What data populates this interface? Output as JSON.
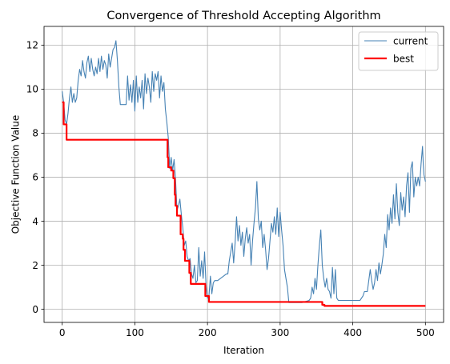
{
  "chart_data": {
    "type": "line",
    "title": "Convergence of Threshold Accepting Algorithm",
    "xlabel": "Iteration",
    "ylabel": "Objective Function Value",
    "xlim": [
      -25,
      525
    ],
    "ylim": [
      -0.6,
      12.85
    ],
    "xticks": [
      0,
      100,
      200,
      300,
      400,
      500
    ],
    "yticks": [
      0,
      2,
      4,
      6,
      8,
      10,
      12
    ],
    "grid": true,
    "legend_position": "top-right",
    "series": [
      {
        "name": "current",
        "color": "#4682b4",
        "points": [
          [
            0,
            9.9
          ],
          [
            2,
            9.4
          ],
          [
            4,
            8.6
          ],
          [
            6,
            8.4
          ],
          [
            8,
            8.9
          ],
          [
            10,
            9.6
          ],
          [
            12,
            10.1
          ],
          [
            14,
            9.4
          ],
          [
            16,
            9.8
          ],
          [
            18,
            9.4
          ],
          [
            20,
            9.6
          ],
          [
            22,
            10.4
          ],
          [
            24,
            10.9
          ],
          [
            26,
            10.6
          ],
          [
            28,
            11.3
          ],
          [
            30,
            10.8
          ],
          [
            32,
            10.5
          ],
          [
            34,
            11.2
          ],
          [
            36,
            11.5
          ],
          [
            38,
            10.8
          ],
          [
            40,
            11.4
          ],
          [
            42,
            10.9
          ],
          [
            44,
            10.6
          ],
          [
            46,
            11.0
          ],
          [
            48,
            10.7
          ],
          [
            50,
            11.4
          ],
          [
            52,
            10.8
          ],
          [
            54,
            11.5
          ],
          [
            56,
            10.9
          ],
          [
            58,
            11.3
          ],
          [
            60,
            11.1
          ],
          [
            62,
            10.5
          ],
          [
            64,
            11.6
          ],
          [
            66,
            11.0
          ],
          [
            68,
            11.4
          ],
          [
            70,
            11.8
          ],
          [
            72,
            11.9
          ],
          [
            74,
            12.2
          ],
          [
            76,
            11.3
          ],
          [
            78,
            10.1
          ],
          [
            80,
            9.3
          ],
          [
            84,
            9.3
          ],
          [
            88,
            9.3
          ],
          [
            90,
            10.6
          ],
          [
            92,
            9.5
          ],
          [
            94,
            10.2
          ],
          [
            96,
            9.4
          ],
          [
            98,
            10.4
          ],
          [
            100,
            9.0
          ],
          [
            102,
            10.6
          ],
          [
            104,
            9.4
          ],
          [
            106,
            10.1
          ],
          [
            108,
            9.6
          ],
          [
            110,
            10.4
          ],
          [
            112,
            9.1
          ],
          [
            114,
            10.7
          ],
          [
            116,
            9.8
          ],
          [
            118,
            10.5
          ],
          [
            120,
            10.1
          ],
          [
            122,
            9.4
          ],
          [
            124,
            10.8
          ],
          [
            126,
            9.9
          ],
          [
            128,
            10.7
          ],
          [
            130,
            10.4
          ],
          [
            132,
            10.8
          ],
          [
            134,
            9.6
          ],
          [
            136,
            10.6
          ],
          [
            138,
            9.9
          ],
          [
            140,
            10.3
          ],
          [
            142,
            9.1
          ],
          [
            144,
            8.5
          ],
          [
            146,
            7.8
          ],
          [
            148,
            6.4
          ],
          [
            150,
            6.9
          ],
          [
            152,
            6.3
          ],
          [
            154,
            6.8
          ],
          [
            156,
            5.9
          ],
          [
            158,
            4.5
          ],
          [
            160,
            4.7
          ],
          [
            162,
            5.0
          ],
          [
            164,
            4.3
          ],
          [
            166,
            3.7
          ],
          [
            168,
            2.9
          ],
          [
            170,
            3.1
          ],
          [
            172,
            2.4
          ],
          [
            174,
            2.2
          ],
          [
            176,
            2.3
          ],
          [
            178,
            1.6
          ],
          [
            180,
            1.4
          ],
          [
            182,
            2.0
          ],
          [
            184,
            1.2
          ],
          [
            186,
            1.3
          ],
          [
            188,
            2.8
          ],
          [
            190,
            1.5
          ],
          [
            192,
            2.2
          ],
          [
            194,
            1.4
          ],
          [
            196,
            2.6
          ],
          [
            198,
            1.1
          ],
          [
            200,
            0.5
          ],
          [
            202,
            0.6
          ],
          [
            204,
            1.5
          ],
          [
            206,
            0.7
          ],
          [
            208,
            1.2
          ],
          [
            210,
            1.3
          ],
          [
            214,
            1.3
          ],
          [
            218,
            1.4
          ],
          [
            222,
            1.5
          ],
          [
            226,
            1.6
          ],
          [
            228,
            1.6
          ],
          [
            230,
            2.2
          ],
          [
            232,
            2.6
          ],
          [
            234,
            3.0
          ],
          [
            236,
            2.1
          ],
          [
            238,
            3.0
          ],
          [
            240,
            4.2
          ],
          [
            242,
            3.1
          ],
          [
            244,
            3.8
          ],
          [
            246,
            2.9
          ],
          [
            248,
            3.5
          ],
          [
            250,
            2.4
          ],
          [
            252,
            3.2
          ],
          [
            254,
            3.7
          ],
          [
            256,
            3.0
          ],
          [
            258,
            3.4
          ],
          [
            260,
            2.0
          ],
          [
            262,
            3.1
          ],
          [
            264,
            3.9
          ],
          [
            266,
            4.6
          ],
          [
            268,
            5.8
          ],
          [
            270,
            4.1
          ],
          [
            272,
            3.6
          ],
          [
            274,
            4.0
          ],
          [
            276,
            2.8
          ],
          [
            278,
            3.4
          ],
          [
            280,
            2.7
          ],
          [
            282,
            1.8
          ],
          [
            284,
            2.3
          ],
          [
            286,
            3.1
          ],
          [
            288,
            3.9
          ],
          [
            290,
            3.5
          ],
          [
            292,
            4.2
          ],
          [
            294,
            3.4
          ],
          [
            296,
            4.6
          ],
          [
            298,
            3.3
          ],
          [
            300,
            4.4
          ],
          [
            302,
            3.6
          ],
          [
            304,
            2.9
          ],
          [
            306,
            1.8
          ],
          [
            308,
            1.4
          ],
          [
            310,
            1.0
          ],
          [
            312,
            0.3
          ],
          [
            320,
            0.3
          ],
          [
            330,
            0.3
          ],
          [
            340,
            0.4
          ],
          [
            342,
            0.5
          ],
          [
            344,
            1.0
          ],
          [
            346,
            0.7
          ],
          [
            348,
            1.4
          ],
          [
            350,
            0.9
          ],
          [
            352,
            2.0
          ],
          [
            354,
            2.9
          ],
          [
            356,
            3.6
          ],
          [
            358,
            2.0
          ],
          [
            360,
            1.4
          ],
          [
            362,
            1.0
          ],
          [
            364,
            1.4
          ],
          [
            366,
            0.9
          ],
          [
            368,
            0.8
          ],
          [
            370,
            0.5
          ],
          [
            372,
            1.9
          ],
          [
            374,
            0.7
          ],
          [
            376,
            1.8
          ],
          [
            378,
            0.5
          ],
          [
            380,
            0.4
          ],
          [
            390,
            0.4
          ],
          [
            400,
            0.4
          ],
          [
            410,
            0.4
          ],
          [
            414,
            0.6
          ],
          [
            416,
            0.8
          ],
          [
            420,
            0.8
          ],
          [
            424,
            1.8
          ],
          [
            426,
            1.3
          ],
          [
            428,
            0.9
          ],
          [
            430,
            1.2
          ],
          [
            432,
            1.8
          ],
          [
            434,
            1.3
          ],
          [
            436,
            2.1
          ],
          [
            438,
            1.6
          ],
          [
            440,
            2.0
          ],
          [
            442,
            2.5
          ],
          [
            444,
            3.4
          ],
          [
            446,
            2.8
          ],
          [
            448,
            4.3
          ],
          [
            450,
            3.6
          ],
          [
            452,
            4.6
          ],
          [
            454,
            3.9
          ],
          [
            456,
            5.2
          ],
          [
            458,
            4.1
          ],
          [
            460,
            5.7
          ],
          [
            462,
            4.4
          ],
          [
            464,
            3.8
          ],
          [
            466,
            5.3
          ],
          [
            468,
            4.5
          ],
          [
            470,
            5.1
          ],
          [
            472,
            4.2
          ],
          [
            474,
            5.6
          ],
          [
            476,
            6.2
          ],
          [
            478,
            4.4
          ],
          [
            480,
            6.4
          ],
          [
            482,
            6.7
          ],
          [
            484,
            5.1
          ],
          [
            486,
            6.0
          ],
          [
            488,
            5.6
          ],
          [
            490,
            6.0
          ],
          [
            492,
            5.6
          ],
          [
            494,
            6.6
          ],
          [
            496,
            7.4
          ],
          [
            497,
            6.6
          ],
          [
            498,
            6.1
          ],
          [
            500,
            5.8
          ]
        ]
      },
      {
        "name": "best",
        "color": "#ff0000",
        "points": [
          [
            0,
            9.4
          ],
          [
            2,
            9.4
          ],
          [
            2,
            8.4
          ],
          [
            6,
            8.4
          ],
          [
            6,
            7.7
          ],
          [
            145,
            7.7
          ],
          [
            145,
            6.9
          ],
          [
            146,
            6.9
          ],
          [
            146,
            6.45
          ],
          [
            150,
            6.45
          ],
          [
            150,
            6.3
          ],
          [
            153,
            6.3
          ],
          [
            153,
            5.95
          ],
          [
            155,
            5.95
          ],
          [
            155,
            5.2
          ],
          [
            156,
            5.2
          ],
          [
            156,
            4.7
          ],
          [
            158,
            4.7
          ],
          [
            158,
            4.25
          ],
          [
            163,
            4.25
          ],
          [
            163,
            3.4
          ],
          [
            166,
            3.4
          ],
          [
            166,
            3.2
          ],
          [
            167,
            3.2
          ],
          [
            167,
            2.7
          ],
          [
            169,
            2.7
          ],
          [
            169,
            2.2
          ],
          [
            175,
            2.2
          ],
          [
            175,
            1.65
          ],
          [
            177,
            1.65
          ],
          [
            177,
            1.15
          ],
          [
            197,
            1.15
          ],
          [
            197,
            0.6
          ],
          [
            202,
            0.6
          ],
          [
            202,
            0.33
          ],
          [
            358,
            0.33
          ],
          [
            358,
            0.2
          ],
          [
            361,
            0.2
          ],
          [
            361,
            0.15
          ],
          [
            500,
            0.15
          ]
        ]
      }
    ]
  }
}
